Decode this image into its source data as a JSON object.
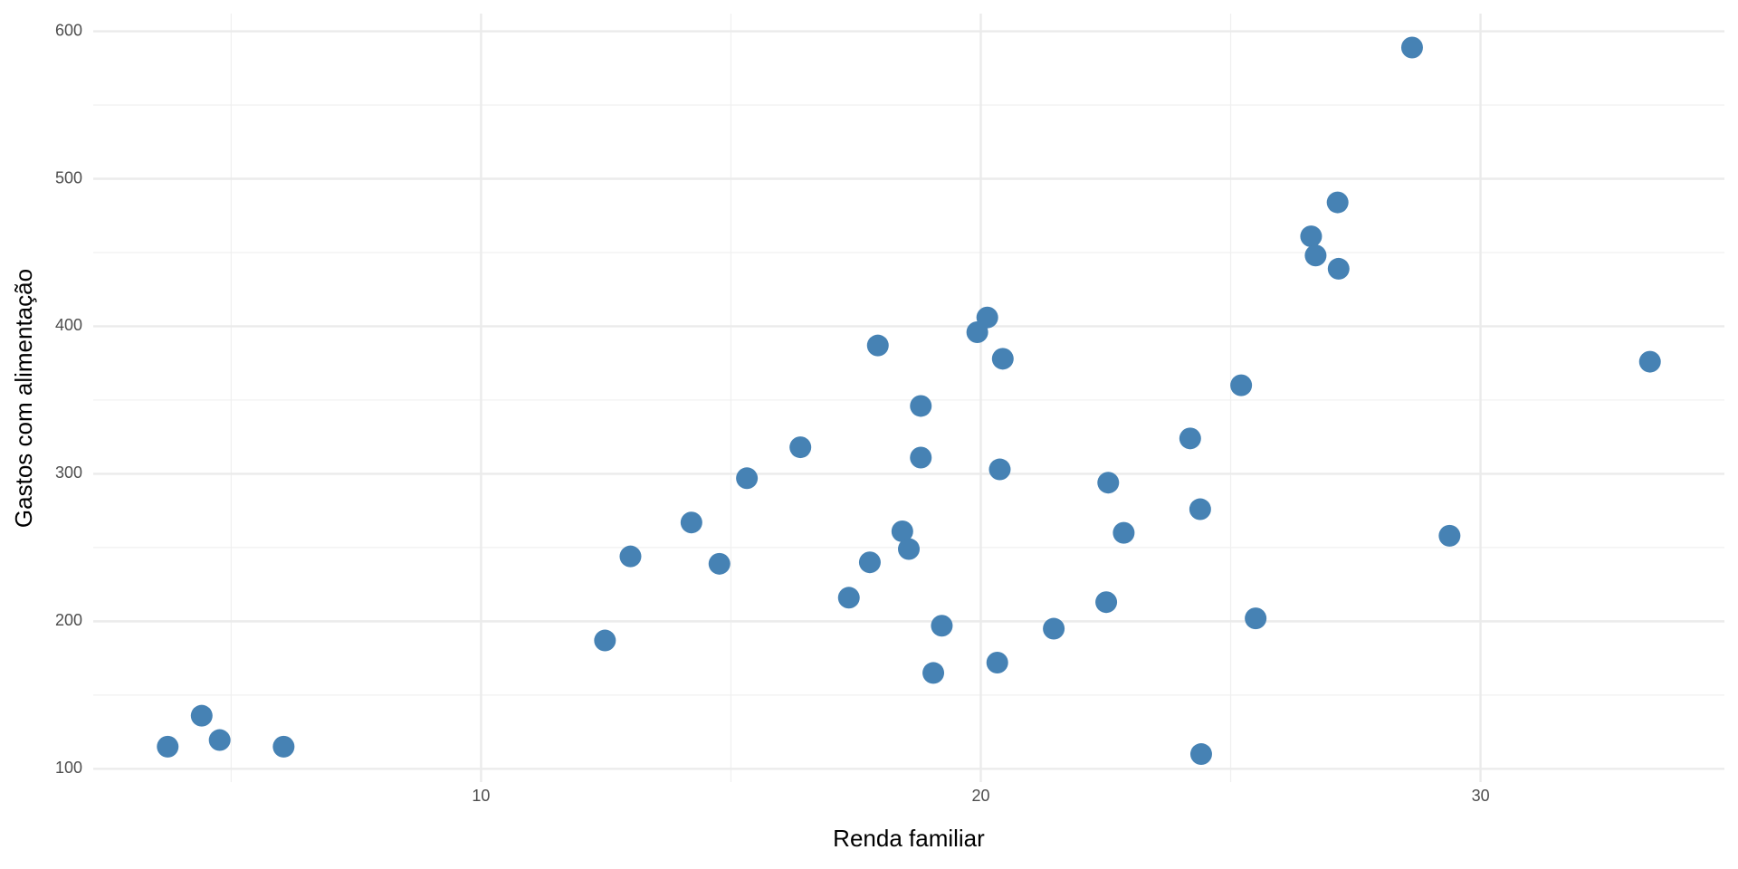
{
  "chart_data": {
    "type": "scatter",
    "x_label": "Renda familiar",
    "y_label": "Gastos com alimentação",
    "color": "#4682b4",
    "grid": true,
    "xlim": [
      2.24,
      34.88
    ],
    "ylim": [
      91,
      612
    ],
    "xticks": [
      10,
      20,
      30
    ],
    "yticks": [
      100,
      200,
      300,
      400,
      500,
      600
    ],
    "minor_xticks": [
      5,
      15,
      25
    ],
    "minor_yticks": [
      150,
      250,
      350,
      450,
      550
    ],
    "x": [
      3.73,
      4.41,
      4.77,
      6.05,
      12.48,
      12.99,
      14.21,
      14.77,
      15.32,
      16.39,
      17.36,
      17.78,
      17.94,
      18.43,
      18.56,
      18.8,
      18.8,
      19.05,
      19.22,
      19.93,
      20.13,
      20.33,
      20.38,
      20.44,
      21.46,
      22.51,
      22.55,
      22.86,
      24.19,
      24.39,
      24.41,
      25.21,
      25.5,
      26.61,
      26.7,
      27.14,
      27.16,
      28.63,
      29.38,
      33.39
    ],
    "values": [
      115,
      136,
      119.5,
      115,
      187,
      244,
      267,
      239,
      297,
      318,
      216,
      240,
      387,
      261,
      249,
      346,
      311,
      165,
      197,
      396,
      406,
      172,
      303,
      378,
      195,
      213,
      294,
      260,
      324,
      276,
      110,
      360,
      202,
      461,
      448,
      484,
      439,
      589,
      258,
      376
    ]
  }
}
